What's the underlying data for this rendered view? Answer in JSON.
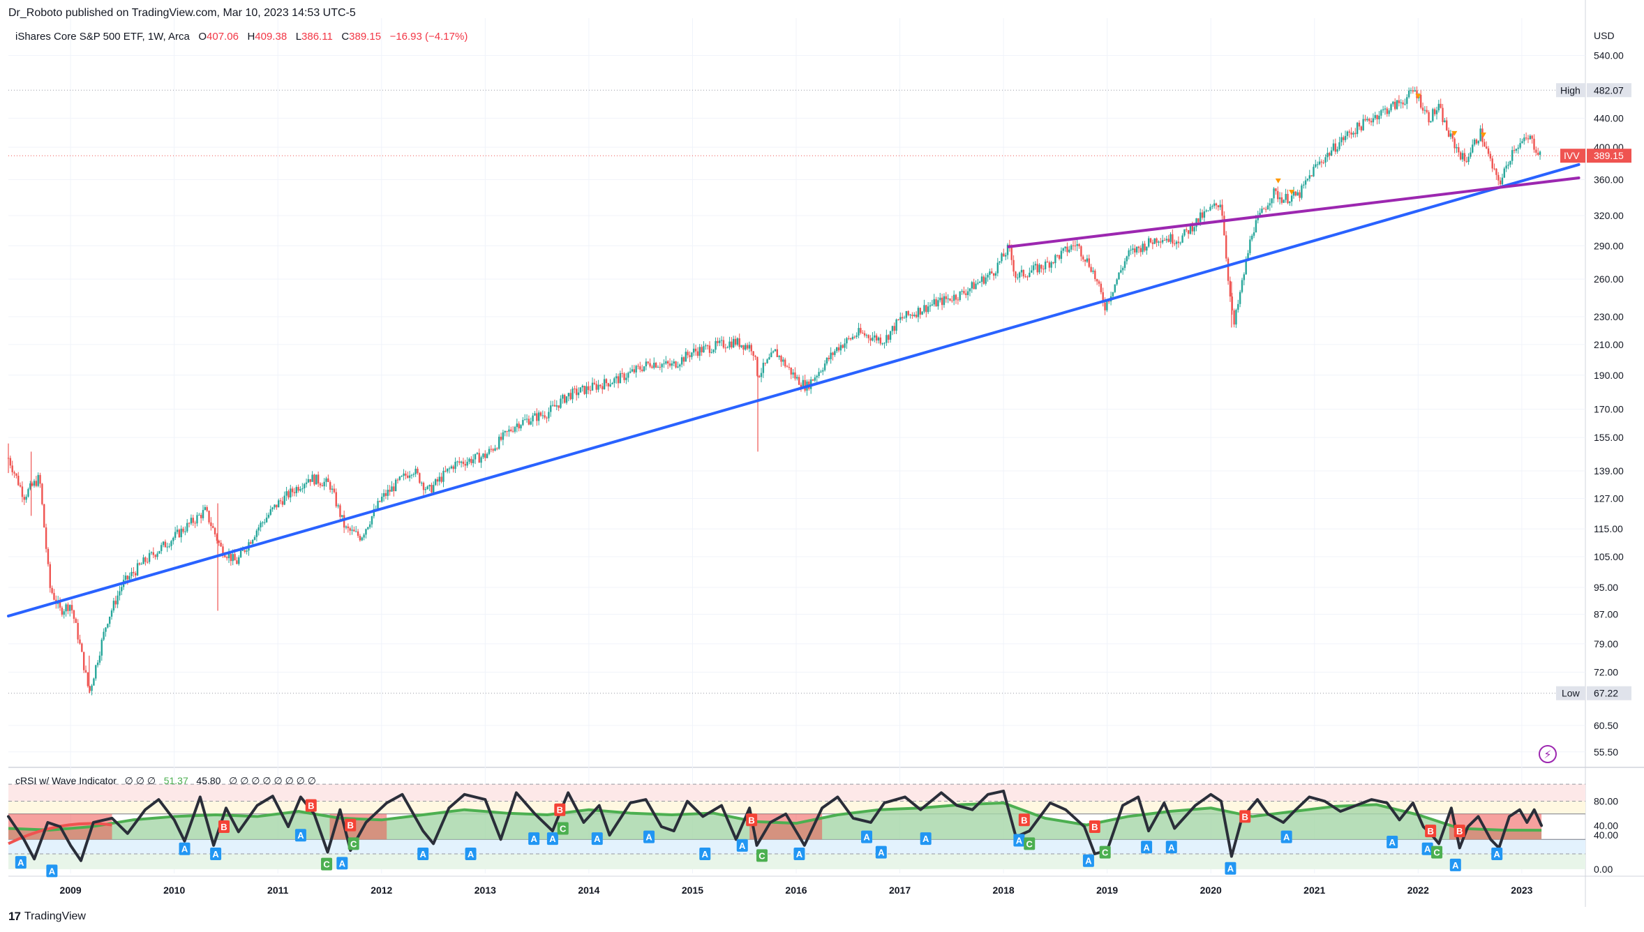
{
  "header": {
    "published": "Dr_Roboto published on TradingView.com, Mar 10, 2023 14:53 UTC-5",
    "instrument": "iShares Core S&P 500 ETF, 1W, Arca",
    "ohlc": {
      "o_label": "O",
      "o": "407.06",
      "h_label": "H",
      "h": "409.38",
      "l_label": "L",
      "l": "386.11",
      "c_label": "C",
      "c": "389.15",
      "change": "−16.93 (−4.17%)"
    }
  },
  "indicator": {
    "name": "cRSI w/ Wave Indicator",
    "legend_before": "∅ ∅ ∅",
    "value1": "51.37",
    "value2": "45.80",
    "legend_after": "∅ ∅ ∅ ∅ ∅ ∅ ∅ ∅"
  },
  "footer": {
    "brand": "TradingView",
    "logo_glyph": "17"
  },
  "colors": {
    "up": "#26a69a",
    "down": "#ef5350",
    "trend_blue": "#2962ff",
    "trend_purple": "#9c27b0",
    "crsi": "#2a2e39",
    "wave": "#4caf50",
    "wave_fill": "#a5d6a7",
    "red_zone": "#ef5350",
    "label_a": "#2196f3",
    "label_b": "#f44336",
    "label_c": "#4caf50",
    "accent_triangle": "#ff9800"
  },
  "chart_data": [
    {
      "type": "candlestick",
      "title": "iShares Core S&P 500 ETF, 1W, Arca",
      "currency_label": "USD",
      "scale": "log",
      "ylim": [
        53,
        610
      ],
      "y_ticks": [
        "540.00",
        "440.00",
        "400.00",
        "360.00",
        "320.00",
        "290.00",
        "260.00",
        "230.00",
        "210.00",
        "190.00",
        "170.00",
        "155.00",
        "139.00",
        "127.00",
        "115.00",
        "105.00",
        "95.00",
        "87.00",
        "79.00",
        "72.00",
        "60.50",
        "55.50"
      ],
      "x_ticks": [
        "2009",
        "2010",
        "2011",
        "2012",
        "2013",
        "2014",
        "2015",
        "2016",
        "2017",
        "2018",
        "2019",
        "2020",
        "2021",
        "2022",
        "2023"
      ],
      "xlim": [
        2008.4,
        2023.6
      ],
      "price_path": [
        [
          2008.4,
          145
        ],
        [
          2008.55,
          128
        ],
        [
          2008.7,
          136
        ],
        [
          2008.8,
          95
        ],
        [
          2008.9,
          88
        ],
        [
          2009.0,
          90
        ],
        [
          2009.08,
          80
        ],
        [
          2009.18,
          67.22
        ],
        [
          2009.35,
          85
        ],
        [
          2009.5,
          96
        ],
        [
          2009.7,
          103
        ],
        [
          2010.0,
          112
        ],
        [
          2010.3,
          122
        ],
        [
          2010.45,
          108
        ],
        [
          2010.6,
          103
        ],
        [
          2010.8,
          115
        ],
        [
          2011.0,
          125
        ],
        [
          2011.3,
          136
        ],
        [
          2011.5,
          133
        ],
        [
          2011.65,
          115
        ],
        [
          2011.8,
          112
        ],
        [
          2012.0,
          127
        ],
        [
          2012.3,
          140
        ],
        [
          2012.45,
          130
        ],
        [
          2012.7,
          142
        ],
        [
          2013.0,
          146
        ],
        [
          2013.3,
          162
        ],
        [
          2013.6,
          168
        ],
        [
          2013.8,
          178
        ],
        [
          2014.0,
          182
        ],
        [
          2014.3,
          188
        ],
        [
          2014.6,
          198
        ],
        [
          2014.8,
          196
        ],
        [
          2015.0,
          205
        ],
        [
          2015.4,
          212
        ],
        [
          2015.58,
          208
        ],
        [
          2015.63,
          190
        ],
        [
          2015.8,
          205
        ],
        [
          2016.0,
          188
        ],
        [
          2016.1,
          183
        ],
        [
          2016.4,
          208
        ],
        [
          2016.6,
          218
        ],
        [
          2016.85,
          213
        ],
        [
          2017.0,
          228
        ],
        [
          2017.3,
          239
        ],
        [
          2017.6,
          248
        ],
        [
          2017.9,
          266
        ],
        [
          2018.05,
          288
        ],
        [
          2018.12,
          262
        ],
        [
          2018.4,
          272
        ],
        [
          2018.7,
          292
        ],
        [
          2018.85,
          270
        ],
        [
          2018.98,
          238
        ],
        [
          2019.2,
          282
        ],
        [
          2019.5,
          298
        ],
        [
          2019.7,
          296
        ],
        [
          2019.9,
          318
        ],
        [
          2020.1,
          335
        ],
        [
          2020.18,
          250
        ],
        [
          2020.22,
          222
        ],
        [
          2020.4,
          305
        ],
        [
          2020.6,
          345
        ],
        [
          2020.7,
          338
        ],
        [
          2020.85,
          342
        ],
        [
          2021.0,
          374
        ],
        [
          2021.3,
          415
        ],
        [
          2021.6,
          445
        ],
        [
          2021.85,
          465
        ],
        [
          2021.97,
          482.07
        ],
        [
          2022.1,
          440
        ],
        [
          2022.2,
          455
        ],
        [
          2022.3,
          415
        ],
        [
          2022.45,
          382
        ],
        [
          2022.6,
          420
        ],
        [
          2022.75,
          362
        ],
        [
          2022.8,
          358
        ],
        [
          2022.92,
          400
        ],
        [
          2023.08,
          412
        ],
        [
          2023.12,
          402
        ],
        [
          2023.19,
          389.15
        ]
      ],
      "high": {
        "label": "High",
        "value": "482.07"
      },
      "low": {
        "label": "Low",
        "value": "67.22"
      },
      "last": {
        "symbol": "IVV",
        "value": "389.15"
      },
      "trendlines": [
        {
          "color": "blue",
          "from": [
            2008.4,
            86.5
          ],
          "to": [
            2023.55,
            378
          ]
        },
        {
          "color": "purple",
          "from": [
            2018.05,
            289
          ],
          "to": [
            2023.55,
            362
          ]
        }
      ]
    },
    {
      "type": "line",
      "title": "cRSI w/ Wave Indicator",
      "ylim": [
        -5,
        110
      ],
      "y_ticks": [
        "80.00",
        "40.00",
        "0.00"
      ],
      "crsi_series": [
        [
          2008.4,
          62
        ],
        [
          2008.55,
          35
        ],
        [
          2008.65,
          12
        ],
        [
          2008.78,
          55
        ],
        [
          2008.9,
          50
        ],
        [
          2009.0,
          28
        ],
        [
          2009.1,
          10
        ],
        [
          2009.22,
          55
        ],
        [
          2009.4,
          60
        ],
        [
          2009.55,
          42
        ],
        [
          2009.72,
          70
        ],
        [
          2009.85,
          82
        ],
        [
          2010.0,
          58
        ],
        [
          2010.1,
          33
        ],
        [
          2010.25,
          85
        ],
        [
          2010.38,
          28
        ],
        [
          2010.5,
          72
        ],
        [
          2010.62,
          44
        ],
        [
          2010.8,
          75
        ],
        [
          2010.95,
          86
        ],
        [
          2011.1,
          50
        ],
        [
          2011.22,
          85
        ],
        [
          2011.35,
          65
        ],
        [
          2011.48,
          20
        ],
        [
          2011.6,
          70
        ],
        [
          2011.7,
          22
        ],
        [
          2011.85,
          55
        ],
        [
          2012.05,
          78
        ],
        [
          2012.2,
          88
        ],
        [
          2012.4,
          45
        ],
        [
          2012.5,
          30
        ],
        [
          2012.65,
          72
        ],
        [
          2012.8,
          88
        ],
        [
          2013.0,
          82
        ],
        [
          2013.15,
          35
        ],
        [
          2013.3,
          90
        ],
        [
          2013.48,
          65
        ],
        [
          2013.65,
          45
        ],
        [
          2013.8,
          90
        ],
        [
          2013.95,
          55
        ],
        [
          2014.1,
          75
        ],
        [
          2014.2,
          40
        ],
        [
          2014.4,
          78
        ],
        [
          2014.55,
          82
        ],
        [
          2014.7,
          50
        ],
        [
          2014.82,
          45
        ],
        [
          2014.95,
          80
        ],
        [
          2015.1,
          62
        ],
        [
          2015.28,
          75
        ],
        [
          2015.42,
          35
        ],
        [
          2015.55,
          72
        ],
        [
          2015.62,
          28
        ],
        [
          2015.75,
          55
        ],
        [
          2015.9,
          65
        ],
        [
          2016.08,
          28
        ],
        [
          2016.25,
          72
        ],
        [
          2016.4,
          85
        ],
        [
          2016.55,
          60
        ],
        [
          2016.72,
          55
        ],
        [
          2016.85,
          78
        ],
        [
          2017.05,
          85
        ],
        [
          2017.2,
          70
        ],
        [
          2017.4,
          90
        ],
        [
          2017.55,
          75
        ],
        [
          2017.7,
          70
        ],
        [
          2017.85,
          88
        ],
        [
          2018.0,
          92
        ],
        [
          2018.12,
          38
        ],
        [
          2018.25,
          45
        ],
        [
          2018.45,
          78
        ],
        [
          2018.6,
          70
        ],
        [
          2018.78,
          50
        ],
        [
          2018.88,
          18
        ],
        [
          2019.0,
          22
        ],
        [
          2019.15,
          75
        ],
        [
          2019.3,
          85
        ],
        [
          2019.4,
          45
        ],
        [
          2019.55,
          78
        ],
        [
          2019.65,
          48
        ],
        [
          2019.85,
          75
        ],
        [
          2020.0,
          88
        ],
        [
          2020.1,
          80
        ],
        [
          2020.2,
          15
        ],
        [
          2020.3,
          60
        ],
        [
          2020.45,
          82
        ],
        [
          2020.55,
          65
        ],
        [
          2020.7,
          55
        ],
        [
          2020.82,
          70
        ],
        [
          2020.95,
          85
        ],
        [
          2021.1,
          80
        ],
        [
          2021.25,
          68
        ],
        [
          2021.4,
          75
        ],
        [
          2021.55,
          82
        ],
        [
          2021.7,
          78
        ],
        [
          2021.82,
          58
        ],
        [
          2021.95,
          78
        ],
        [
          2022.05,
          50
        ],
        [
          2022.12,
          42
        ],
        [
          2022.2,
          30
        ],
        [
          2022.32,
          72
        ],
        [
          2022.4,
          25
        ],
        [
          2022.48,
          50
        ],
        [
          2022.58,
          62
        ],
        [
          2022.7,
          35
        ],
        [
          2022.78,
          25
        ],
        [
          2022.88,
          62
        ],
        [
          2022.98,
          70
        ],
        [
          2023.05,
          55
        ],
        [
          2023.12,
          70
        ],
        [
          2023.19,
          51.37
        ]
      ],
      "wave_series": [
        [
          2008.4,
          48
        ],
        [
          2008.8,
          46
        ],
        [
          2009.2,
          50
        ],
        [
          2009.6,
          58
        ],
        [
          2010.0,
          62
        ],
        [
          2010.4,
          64
        ],
        [
          2010.8,
          62
        ],
        [
          2011.2,
          68
        ],
        [
          2011.6,
          60
        ],
        [
          2012.0,
          58
        ],
        [
          2012.4,
          64
        ],
        [
          2012.8,
          70
        ],
        [
          2013.2,
          66
        ],
        [
          2013.6,
          64
        ],
        [
          2014.0,
          70
        ],
        [
          2014.4,
          66
        ],
        [
          2014.8,
          64
        ],
        [
          2015.2,
          66
        ],
        [
          2015.6,
          56
        ],
        [
          2016.0,
          54
        ],
        [
          2016.4,
          64
        ],
        [
          2016.8,
          70
        ],
        [
          2017.2,
          72
        ],
        [
          2017.6,
          76
        ],
        [
          2018.0,
          78
        ],
        [
          2018.4,
          60
        ],
        [
          2018.8,
          52
        ],
        [
          2019.2,
          62
        ],
        [
          2019.6,
          68
        ],
        [
          2020.0,
          72
        ],
        [
          2020.4,
          62
        ],
        [
          2020.8,
          68
        ],
        [
          2021.2,
          74
        ],
        [
          2021.6,
          76
        ],
        [
          2022.0,
          64
        ],
        [
          2022.4,
          48
        ],
        [
          2022.8,
          46
        ],
        [
          2023.19,
          45.8
        ]
      ],
      "signal_labels": [
        {
          "t": "A",
          "x": 2008.52,
          "y": 8
        },
        {
          "t": "A",
          "x": 2008.82,
          "y": -2
        },
        {
          "t": "A",
          "x": 2010.1,
          "y": 24
        },
        {
          "t": "A",
          "x": 2010.4,
          "y": 18
        },
        {
          "t": "B",
          "x": 2010.48,
          "y": 50
        },
        {
          "t": "A",
          "x": 2011.22,
          "y": 40
        },
        {
          "t": "B",
          "x": 2011.32,
          "y": 75
        },
        {
          "t": "C",
          "x": 2011.47,
          "y": 6
        },
        {
          "t": "A",
          "x": 2011.62,
          "y": 7
        },
        {
          "t": "C",
          "x": 2011.73,
          "y": 30
        },
        {
          "t": "B",
          "x": 2011.7,
          "y": 52
        },
        {
          "t": "A",
          "x": 2012.4,
          "y": 18
        },
        {
          "t": "A",
          "x": 2012.86,
          "y": 18
        },
        {
          "t": "A",
          "x": 2013.47,
          "y": 36
        },
        {
          "t": "A",
          "x": 2013.65,
          "y": 36
        },
        {
          "t": "B",
          "x": 2013.72,
          "y": 70
        },
        {
          "t": "C",
          "x": 2013.75,
          "y": 48
        },
        {
          "t": "A",
          "x": 2014.08,
          "y": 36
        },
        {
          "t": "A",
          "x": 2014.58,
          "y": 38
        },
        {
          "t": "A",
          "x": 2015.12,
          "y": 18
        },
        {
          "t": "A",
          "x": 2015.48,
          "y": 28
        },
        {
          "t": "B",
          "x": 2015.57,
          "y": 58
        },
        {
          "t": "C",
          "x": 2015.67,
          "y": 16
        },
        {
          "t": "A",
          "x": 2016.03,
          "y": 18
        },
        {
          "t": "A",
          "x": 2016.68,
          "y": 38
        },
        {
          "t": "A",
          "x": 2016.82,
          "y": 20
        },
        {
          "t": "A",
          "x": 2017.25,
          "y": 36
        },
        {
          "t": "A",
          "x": 2018.15,
          "y": 34
        },
        {
          "t": "B",
          "x": 2018.2,
          "y": 58
        },
        {
          "t": "C",
          "x": 2018.25,
          "y": 30
        },
        {
          "t": "B",
          "x": 2018.88,
          "y": 50
        },
        {
          "t": "A",
          "x": 2018.82,
          "y": 10
        },
        {
          "t": "C",
          "x": 2018.98,
          "y": 20
        },
        {
          "t": "A",
          "x": 2019.38,
          "y": 26
        },
        {
          "t": "A",
          "x": 2019.62,
          "y": 26
        },
        {
          "t": "B",
          "x": 2020.33,
          "y": 62
        },
        {
          "t": "A",
          "x": 2020.19,
          "y": 1
        },
        {
          "t": "A",
          "x": 2020.73,
          "y": 38
        },
        {
          "t": "A",
          "x": 2021.75,
          "y": 32
        },
        {
          "t": "A",
          "x": 2022.09,
          "y": 24
        },
        {
          "t": "B",
          "x": 2022.12,
          "y": 45
        },
        {
          "t": "C",
          "x": 2022.18,
          "y": 20
        },
        {
          "t": "B",
          "x": 2022.4,
          "y": 45
        },
        {
          "t": "A",
          "x": 2022.36,
          "y": 5
        },
        {
          "t": "A",
          "x": 2022.76,
          "y": 18
        }
      ]
    }
  ]
}
